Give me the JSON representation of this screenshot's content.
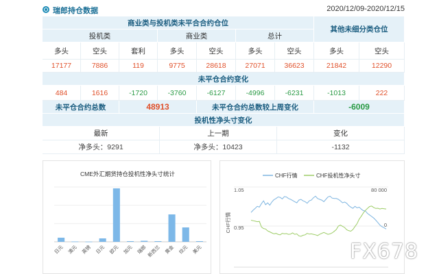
{
  "header": {
    "title": "瑞郎持仓数据",
    "date_range": "2020/12/09-2020/12/15"
  },
  "table": {
    "group_header": "商业类与投机类未平合合约仓位",
    "other_header": "其他未细分类仓位",
    "speculative": "投机类",
    "commercial": "商业类",
    "total": "总计",
    "col_labels": [
      "多头",
      "空头",
      "套利",
      "多头",
      "空头",
      "多头",
      "空头",
      "多头",
      "空头"
    ],
    "positions": [
      "17177",
      "7886",
      "119",
      "9775",
      "28618",
      "27071",
      "36623",
      "21842",
      "12290"
    ],
    "change_header": "未平仓合约变化",
    "changes": [
      "484",
      "1616",
      "-1720",
      "-3760",
      "-6127",
      "-4996",
      "-6231",
      "-1013",
      "222"
    ],
    "oi_total_label": "未平仓合约总数",
    "oi_total_value": "48913",
    "oi_change_label": "未平仓合约总数较上周变化",
    "oi_change_value": "-6009",
    "net_header": "投机性净头寸变化",
    "latest_label": "最新",
    "prev_label": "上一期",
    "delta_label": "变化",
    "latest_value": "净多头：9291",
    "prev_value": "净多头：10423",
    "delta_value": "-1132"
  },
  "chart_data": [
    {
      "type": "bar",
      "title": "CME外汇期货持仓投机性净头寸统计",
      "categories": [
        "日元",
        "澳元",
        "英镑",
        "日元",
        "欧元",
        "加元",
        "瑞郎",
        "新西兰",
        "黄金",
        "纹元",
        "美元"
      ],
      "values": [
        6,
        0.5,
        0.3,
        5,
        78,
        1,
        1.5,
        1,
        40,
        21,
        1
      ],
      "color": "#7db8e8"
    },
    {
      "type": "line",
      "legend": [
        "CHF行情",
        "CHF投机性净头寸"
      ],
      "colors": [
        "#7cb4e0",
        "#9ccc65"
      ],
      "left_axis_label": "CHF行情",
      "left_ticks": [
        "1.05",
        "0.95"
      ],
      "right_ticks": [
        "80 000",
        "0"
      ],
      "series": [
        {
          "name": "CHF行情",
          "values": [
            0.985,
            0.9905,
            0.9955,
            1.0005,
            0.9985,
            1.0075,
            1.0145,
            1.0045,
            1.0095,
            1.0035,
            1.0115,
            1.0175,
            1.0205,
            1.0245,
            1.0235,
            1.0195,
            1.0255,
            1.0245,
            1.0205,
            1.0185,
            1.0155,
            1.0125,
            1.0095,
            1.0165,
            1.0185,
            1.0145,
            1.0125,
            1.0085,
            1.0145,
            1.0165,
            1.0225,
            1.0265,
            1.0205,
            1.0185,
            1.0165,
            1.0125,
            1.0185,
            1.0245,
            1.0265,
            1.0215,
            1.0205,
            1.0205,
            1.0185,
            1.0145,
            1.0095,
            1.0115,
            1.0085,
            1.0025,
            0.9985,
            0.9955,
            1.0005,
            0.9965,
            0.9985,
            0.9935,
            0.9895,
            0.9885,
            0.9825,
            0.9785,
            0.9745,
            0.9705,
            0.965,
            0.959,
            0.9525,
            0.9485,
            0.9455,
            0.9425
          ]
        },
        {
          "name": "CHF投机性净头寸",
          "values": [
            12000,
            11000,
            10000,
            9000,
            9500,
            -2000,
            -5000,
            -6000,
            -10000,
            -12000,
            -14000,
            -16000,
            -15000,
            -17000,
            -18000,
            -15000,
            -16000,
            -15500,
            -17000,
            -16500,
            -14000,
            -17000,
            -16000,
            -20000,
            -21000,
            -19000,
            -18000,
            -15000,
            -16500,
            -16000,
            -17000,
            -18000,
            -19500,
            -17000,
            -15000,
            -13000,
            -15000,
            -17000,
            -16000,
            -14000,
            -11000,
            -7000,
            0,
            2000,
            -500,
            -3000,
            -7500,
            -9500,
            -10500,
            -7000,
            -1000,
            5000,
            14000,
            20000,
            27000,
            32000,
            36000,
            40000,
            41000,
            38000,
            36000,
            36500,
            35000,
            36000,
            35500,
            35000
          ]
        }
      ]
    }
  ],
  "watermark": "FX678"
}
